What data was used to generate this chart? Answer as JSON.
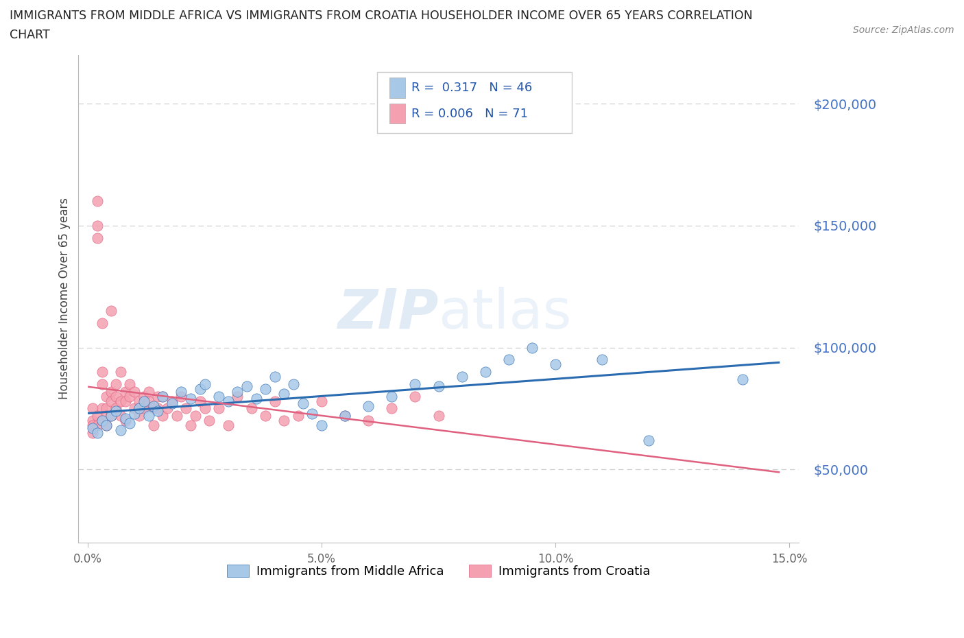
{
  "title_line1": "IMMIGRANTS FROM MIDDLE AFRICA VS IMMIGRANTS FROM CROATIA HOUSEHOLDER INCOME OVER 65 YEARS CORRELATION",
  "title_line2": "CHART",
  "source_text": "Source: ZipAtlas.com",
  "ylabel": "Householder Income Over 65 years",
  "xlim": [
    -0.002,
    0.152
  ],
  "ylim": [
    20000,
    220000
  ],
  "yticks": [
    50000,
    100000,
    150000,
    200000
  ],
  "ytick_labels": [
    "$50,000",
    "$100,000",
    "$150,000",
    "$200,000"
  ],
  "xticks": [
    0.0,
    0.05,
    0.1,
    0.15
  ],
  "xtick_labels": [
    "0.0%",
    "5.0%",
    "10.0%",
    "15.0%"
  ],
  "r_middle_africa": 0.317,
  "n_middle_africa": 46,
  "r_croatia": 0.006,
  "n_croatia": 71,
  "color_middle_africa": "#a8c8e8",
  "color_croatia": "#f4a0b0",
  "line_color_middle_africa": "#2b6cb0",
  "line_color_croatia": "#e06080",
  "watermark": "ZIPatlas"
}
